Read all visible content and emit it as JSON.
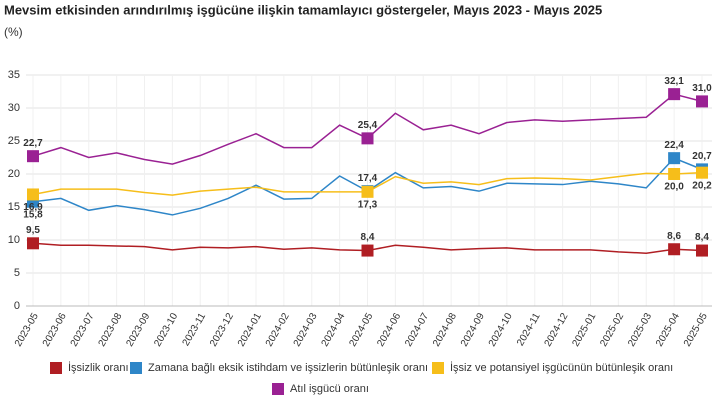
{
  "chart_data": {
    "type": "line",
    "title": "Mevsim etkisinden arındırılmış işgücüne ilişkin tamamlayıcı göstergeler, Mayıs 2023 - Mayıs 2025",
    "y_label": "(%)",
    "categories": [
      "2023-05",
      "2023-06",
      "2023-07",
      "2023-08",
      "2023-09",
      "2023-10",
      "2023-11",
      "2023-12",
      "2024-01",
      "2024-02",
      "2024-03",
      "2024-04",
      "2024-05",
      "2024-06",
      "2024-07",
      "2024-08",
      "2024-09",
      "2024-10",
      "2024-11",
      "2024-12",
      "2025-01",
      "2025-02",
      "2025-03",
      "2025-04",
      "2025-05"
    ],
    "ylim": [
      0,
      35
    ],
    "yticks": [
      0,
      5,
      10,
      15,
      20,
      25,
      30,
      35
    ],
    "grid": true,
    "series": [
      {
        "name": "İşsizlik oranı",
        "color": "#b01e23",
        "values": [
          9.5,
          9.2,
          9.2,
          9.1,
          9.0,
          8.5,
          8.9,
          8.8,
          9.0,
          8.6,
          8.8,
          8.5,
          8.4,
          9.2,
          8.9,
          8.5,
          8.7,
          8.8,
          8.5,
          8.5,
          8.5,
          8.2,
          8.0,
          8.6,
          8.4
        ],
        "value_labels": [
          "9,5",
          null,
          null,
          null,
          null,
          null,
          null,
          null,
          null,
          null,
          null,
          null,
          "8,4",
          null,
          null,
          null,
          null,
          null,
          null,
          null,
          null,
          null,
          null,
          "8,6",
          "8,4"
        ]
      },
      {
        "name": "Zamana bağlı eksik istihdam ve işsizlerin bütünleşik oranı",
        "color": "#2e86c8",
        "values": [
          15.8,
          16.3,
          14.5,
          15.2,
          14.6,
          13.8,
          14.8,
          16.3,
          18.3,
          16.2,
          16.3,
          19.7,
          17.4,
          20.2,
          17.9,
          18.1,
          17.4,
          18.6,
          18.5,
          18.4,
          18.9,
          18.5,
          17.9,
          22.4,
          20.7
        ],
        "value_labels": [
          "15,8",
          null,
          null,
          null,
          null,
          null,
          null,
          null,
          null,
          null,
          null,
          null,
          "17,4",
          null,
          null,
          null,
          null,
          null,
          null,
          null,
          null,
          null,
          null,
          "22,4",
          "20,7"
        ]
      },
      {
        "name": "İşsiz ve potansiyel işgücünün bütünleşik oranı",
        "color": "#f6be1a",
        "values": [
          16.9,
          17.7,
          17.7,
          17.7,
          17.2,
          16.8,
          17.4,
          17.7,
          18.0,
          17.3,
          17.3,
          17.3,
          17.3,
          19.6,
          18.6,
          18.8,
          18.4,
          19.3,
          19.4,
          19.3,
          19.1,
          19.6,
          20.1,
          20.0,
          20.2
        ],
        "value_labels": [
          "16,9",
          null,
          null,
          null,
          null,
          null,
          null,
          null,
          null,
          null,
          null,
          null,
          "17,3",
          null,
          null,
          null,
          null,
          null,
          null,
          null,
          null,
          null,
          null,
          "20,0",
          "20,2"
        ]
      },
      {
        "name": "Atıl işgücü oranı",
        "color": "#9a2193",
        "values": [
          22.7,
          24.0,
          22.5,
          23.2,
          22.2,
          21.5,
          22.8,
          24.5,
          26.1,
          24.0,
          24.0,
          27.4,
          25.4,
          29.2,
          26.7,
          27.4,
          26.1,
          27.8,
          28.2,
          28.0,
          28.2,
          28.4,
          28.6,
          32.1,
          31.0
        ],
        "value_labels": [
          "22,7",
          null,
          null,
          null,
          null,
          null,
          null,
          null,
          null,
          null,
          null,
          null,
          "25,4",
          null,
          null,
          null,
          null,
          null,
          null,
          null,
          null,
          null,
          null,
          "32,1",
          "31,0"
        ]
      }
    ]
  }
}
